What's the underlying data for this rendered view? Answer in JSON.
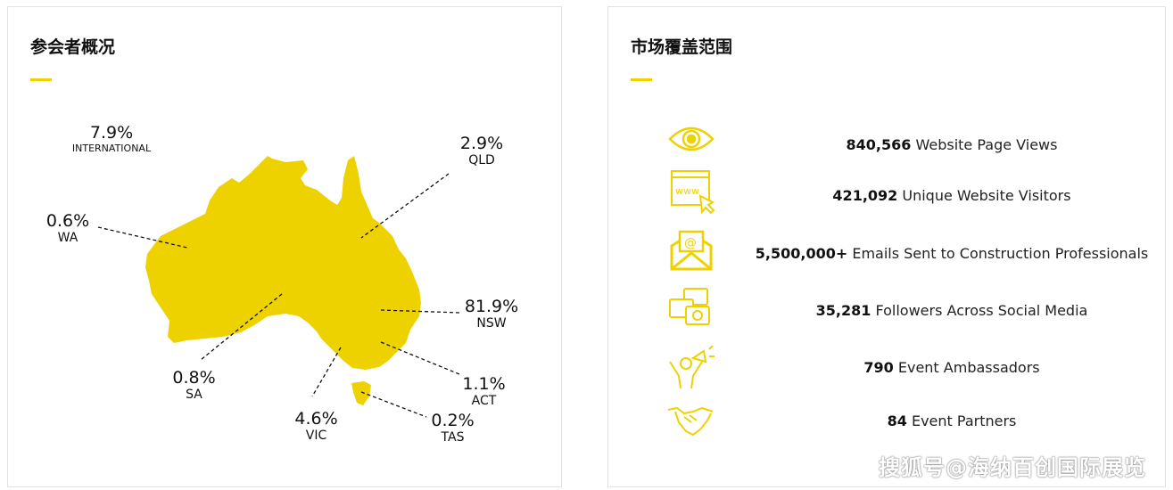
{
  "left_panel": {
    "title": "参会者概况",
    "labels": [
      {
        "pct": "7.9%",
        "region": "INTERNATIONAL"
      },
      {
        "pct": "2.9%",
        "region": "QLD"
      },
      {
        "pct": "0.6%",
        "region": "WA"
      },
      {
        "pct": "81.9%",
        "region": "NSW"
      },
      {
        "pct": "0.8%",
        "region": "SA"
      },
      {
        "pct": "1.1%",
        "region": "ACT"
      },
      {
        "pct": "4.6%",
        "region": "VIC"
      },
      {
        "pct": "0.2%",
        "region": "TAS"
      }
    ]
  },
  "right_panel": {
    "title": "市场覆盖范围",
    "items": [
      {
        "icon": "eye-icon",
        "value": "840,566",
        "label": " Website Page Views"
      },
      {
        "icon": "website-cursor-icon",
        "value": "421,092",
        "label": " Unique Website Visitors"
      },
      {
        "icon": "email-icon",
        "value": "5,500,000+",
        "label": " Emails Sent to Construction Professionals"
      },
      {
        "icon": "social-chat-icon",
        "value": "35,281",
        "label": " Followers Across Social Media"
      },
      {
        "icon": "megaphone-person-icon",
        "value": "790",
        "label": " Event Ambassadors"
      },
      {
        "icon": "handshake-icon",
        "value": "84",
        "label": " Event Partners"
      }
    ]
  },
  "watermark": "搜狐号@海纳百创国际展览",
  "colors": {
    "accent": "#EED200"
  }
}
